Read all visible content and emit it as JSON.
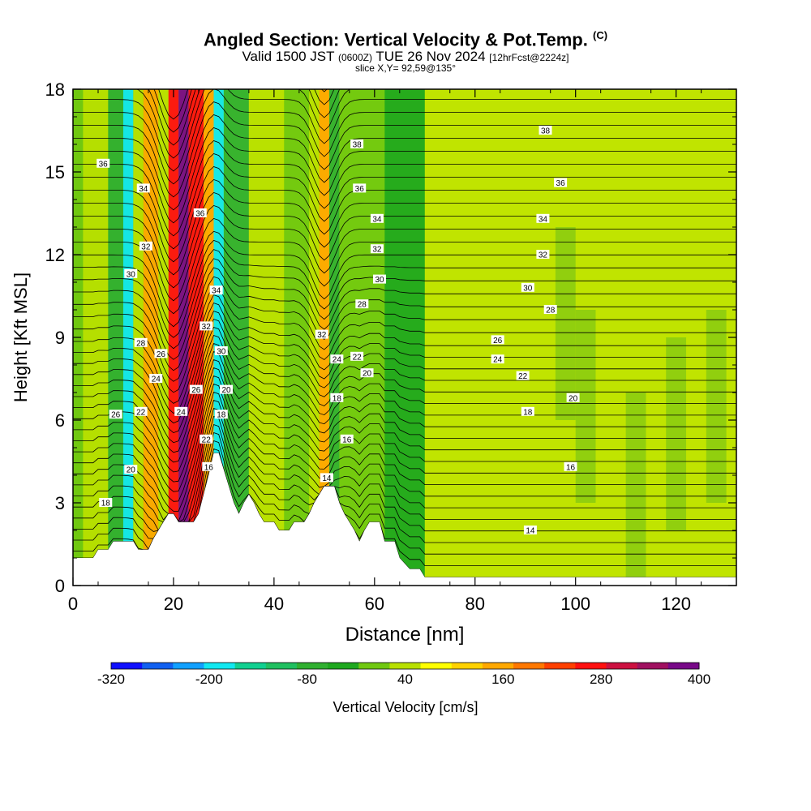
{
  "title": {
    "main": "Angled Section: Vertical Velocity & Pot.Temp.",
    "units_tag": "(C)",
    "valid_prefix": "Valid 1500 JST",
    "valid_z": "(0600Z)",
    "valid_date": "TUE 26 Nov 2024",
    "forecast": "[12hrFcst@2224z]",
    "slice": "slice X,Y= 92,59@135°"
  },
  "chart_data": {
    "type": "heatmap",
    "xlabel": "Distance [nm]",
    "ylabel": "Height [Kft MSL]",
    "xlim": [
      0,
      132
    ],
    "ylim": [
      0,
      18
    ],
    "x_ticks": [
      "0",
      "20",
      "40",
      "60",
      "80",
      "100",
      "120"
    ],
    "y_ticks": [
      "0",
      "3",
      "6",
      "9",
      "12",
      "15",
      "18"
    ],
    "colorbar": {
      "label": "Vertical Velocity [cm/s]",
      "tick_labels": [
        "-320",
        "-200",
        "-80",
        "40",
        "160",
        "280",
        "400"
      ],
      "colors": [
        "#1010ff",
        "#1060f0",
        "#10a0ff",
        "#10e8f0",
        "#10d090",
        "#20c060",
        "#30b030",
        "#1ea81e",
        "#70c810",
        "#b8e000",
        "#ffff00",
        "#ffd200",
        "#ffa800",
        "#ff7800",
        "#ff4000",
        "#ff1010",
        "#cc1040",
        "#a01060",
        "#780888"
      ]
    },
    "vertical_velocity_columns": [
      {
        "x": 2,
        "w": 5,
        "value": 40
      },
      {
        "x": 7,
        "w": 3,
        "value": -80
      },
      {
        "x": 10,
        "w": 2,
        "value": -200
      },
      {
        "x": 12,
        "w": 2,
        "value": 40
      },
      {
        "x": 14,
        "w": 3,
        "value": 160
      },
      {
        "x": 17,
        "w": 2,
        "value": 40
      },
      {
        "x": 19,
        "w": 2,
        "value": 280
      },
      {
        "x": 21,
        "w": 2,
        "value": 400
      },
      {
        "x": 23,
        "w": 3,
        "value": 280
      },
      {
        "x": 26,
        "w": 2,
        "value": 160
      },
      {
        "x": 28,
        "w": 2,
        "value": -200
      },
      {
        "x": 30,
        "w": 5,
        "value": -80
      },
      {
        "x": 35,
        "w": 7,
        "value": 40
      },
      {
        "x": 42,
        "w": 5,
        "value": 0
      },
      {
        "x": 47,
        "w": 2,
        "value": 40
      },
      {
        "x": 49,
        "w": 2,
        "value": 160
      },
      {
        "x": 51,
        "w": 2,
        "value": -80
      },
      {
        "x": 53,
        "w": 9,
        "value": 0
      },
      {
        "x": 62,
        "w": 8,
        "value": -40
      }
    ],
    "theta_labels": [
      {
        "x": 6,
        "y": 15.3,
        "text": "36"
      },
      {
        "x": 14,
        "y": 14.4,
        "text": "34"
      },
      {
        "x": 14.5,
        "y": 12.3,
        "text": "32"
      },
      {
        "x": 11.5,
        "y": 11.3,
        "text": "30"
      },
      {
        "x": 13.5,
        "y": 8.8,
        "text": "28"
      },
      {
        "x": 17.5,
        "y": 8.4,
        "text": "26"
      },
      {
        "x": 16.5,
        "y": 7.5,
        "text": "24"
      },
      {
        "x": 13.5,
        "y": 6.3,
        "text": "22"
      },
      {
        "x": 8.5,
        "y": 6.2,
        "text": "26"
      },
      {
        "x": 11.5,
        "y": 4.2,
        "text": "20"
      },
      {
        "x": 6.5,
        "y": 3.0,
        "text": "18"
      },
      {
        "x": 25.3,
        "y": 13.5,
        "text": "36"
      },
      {
        "x": 28.5,
        "y": 10.7,
        "text": "34"
      },
      {
        "x": 26.5,
        "y": 9.4,
        "text": "32"
      },
      {
        "x": 29.5,
        "y": 8.5,
        "text": "30"
      },
      {
        "x": 24.5,
        "y": 7.1,
        "text": "26"
      },
      {
        "x": 21.5,
        "y": 6.3,
        "text": "24"
      },
      {
        "x": 30.5,
        "y": 7.1,
        "text": "20"
      },
      {
        "x": 29.5,
        "y": 6.2,
        "text": "18"
      },
      {
        "x": 26.5,
        "y": 5.3,
        "text": "22"
      },
      {
        "x": 27,
        "y": 4.3,
        "text": "16"
      },
      {
        "x": 56.5,
        "y": 16.0,
        "text": "38"
      },
      {
        "x": 57,
        "y": 14.4,
        "text": "36"
      },
      {
        "x": 60.5,
        "y": 13.3,
        "text": "34"
      },
      {
        "x": 60.5,
        "y": 12.2,
        "text": "32"
      },
      {
        "x": 61,
        "y": 11.1,
        "text": "30"
      },
      {
        "x": 57.5,
        "y": 10.2,
        "text": "28"
      },
      {
        "x": 49.5,
        "y": 9.1,
        "text": "32"
      },
      {
        "x": 52.5,
        "y": 8.2,
        "text": "24"
      },
      {
        "x": 56.5,
        "y": 8.3,
        "text": "22"
      },
      {
        "x": 58.5,
        "y": 7.7,
        "text": "20"
      },
      {
        "x": 52.5,
        "y": 6.8,
        "text": "18"
      },
      {
        "x": 54.5,
        "y": 5.3,
        "text": "16"
      },
      {
        "x": 50.5,
        "y": 3.9,
        "text": "14"
      },
      {
        "x": 94,
        "y": 16.5,
        "text": "38"
      },
      {
        "x": 97,
        "y": 14.6,
        "text": "36"
      },
      {
        "x": 93.5,
        "y": 13.3,
        "text": "34"
      },
      {
        "x": 93.5,
        "y": 12.0,
        "text": "32"
      },
      {
        "x": 90.5,
        "y": 10.8,
        "text": "30"
      },
      {
        "x": 95,
        "y": 10.0,
        "text": "28"
      },
      {
        "x": 84.5,
        "y": 8.9,
        "text": "26"
      },
      {
        "x": 84.5,
        "y": 8.2,
        "text": "24"
      },
      {
        "x": 89.5,
        "y": 7.6,
        "text": "22"
      },
      {
        "x": 99.5,
        "y": 6.8,
        "text": "20"
      },
      {
        "x": 90.5,
        "y": 6.3,
        "text": "18"
      },
      {
        "x": 99,
        "y": 4.3,
        "text": "16"
      },
      {
        "x": 91,
        "y": 2.0,
        "text": "14"
      }
    ],
    "terrain_kft": [
      [
        0,
        1.0
      ],
      [
        4,
        1.0
      ],
      [
        5,
        1.3
      ],
      [
        7,
        1.3
      ],
      [
        8,
        1.6
      ],
      [
        12,
        1.6
      ],
      [
        13,
        1.3
      ],
      [
        15,
        1.3
      ],
      [
        16,
        1.7
      ],
      [
        17,
        2.0
      ],
      [
        18,
        2.3
      ],
      [
        19,
        2.6
      ],
      [
        20,
        2.6
      ],
      [
        21,
        2.3
      ],
      [
        22,
        2.3
      ],
      [
        24,
        2.3
      ],
      [
        25,
        2.6
      ],
      [
        26,
        3.3
      ],
      [
        27,
        4.0
      ],
      [
        28,
        4.8
      ],
      [
        29,
        4.8
      ],
      [
        30,
        4.2
      ],
      [
        31,
        3.6
      ],
      [
        32,
        3.0
      ],
      [
        33,
        2.6
      ],
      [
        34,
        3.0
      ],
      [
        35,
        3.3
      ],
      [
        36,
        3.0
      ],
      [
        37,
        2.6
      ],
      [
        38,
        2.3
      ],
      [
        40,
        2.3
      ],
      [
        41,
        2.0
      ],
      [
        43,
        2.0
      ],
      [
        44,
        2.3
      ],
      [
        46,
        2.3
      ],
      [
        47,
        2.6
      ],
      [
        48,
        3.0
      ],
      [
        49,
        3.3
      ],
      [
        50,
        3.6
      ],
      [
        52,
        3.6
      ],
      [
        53,
        3.0
      ],
      [
        54,
        2.6
      ],
      [
        55,
        2.3
      ],
      [
        56,
        2.0
      ],
      [
        57,
        1.6
      ],
      [
        58,
        2.0
      ],
      [
        59,
        2.3
      ],
      [
        61,
        2.3
      ],
      [
        62,
        1.6
      ],
      [
        64,
        1.6
      ],
      [
        65,
        1.0
      ],
      [
        67,
        0.6
      ],
      [
        69,
        0.6
      ],
      [
        70,
        0.3
      ],
      [
        132,
        0.3
      ]
    ]
  }
}
